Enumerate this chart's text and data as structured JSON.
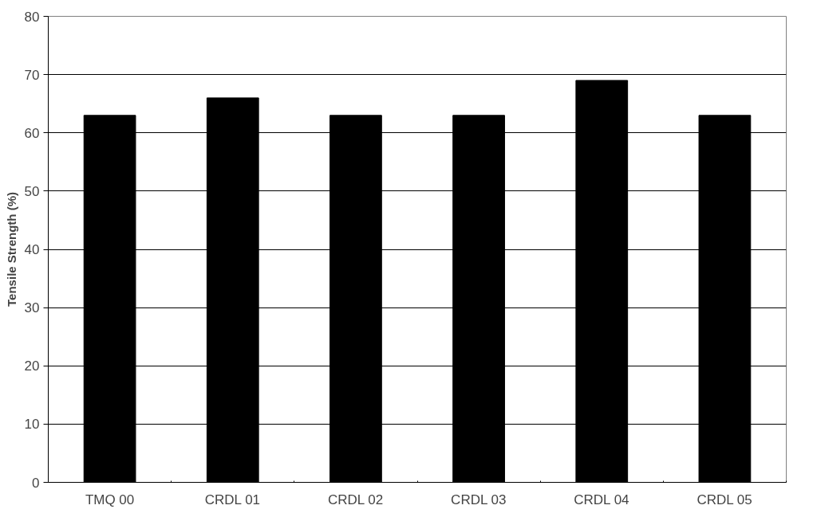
{
  "chart_data": {
    "type": "bar",
    "ylabel": "Tensile Strength (%)",
    "categories": [
      "TMQ 00",
      "CRDL 01",
      "CRDL 02",
      "CRDL 03",
      "CRDL 04",
      "CRDL 05"
    ],
    "values": [
      63,
      66,
      63,
      63,
      69,
      63
    ],
    "color": "#000000",
    "ylim": [
      0,
      80
    ],
    "yticks": [
      0,
      10,
      20,
      30,
      40,
      50,
      60,
      70,
      80
    ],
    "grid": "y"
  }
}
